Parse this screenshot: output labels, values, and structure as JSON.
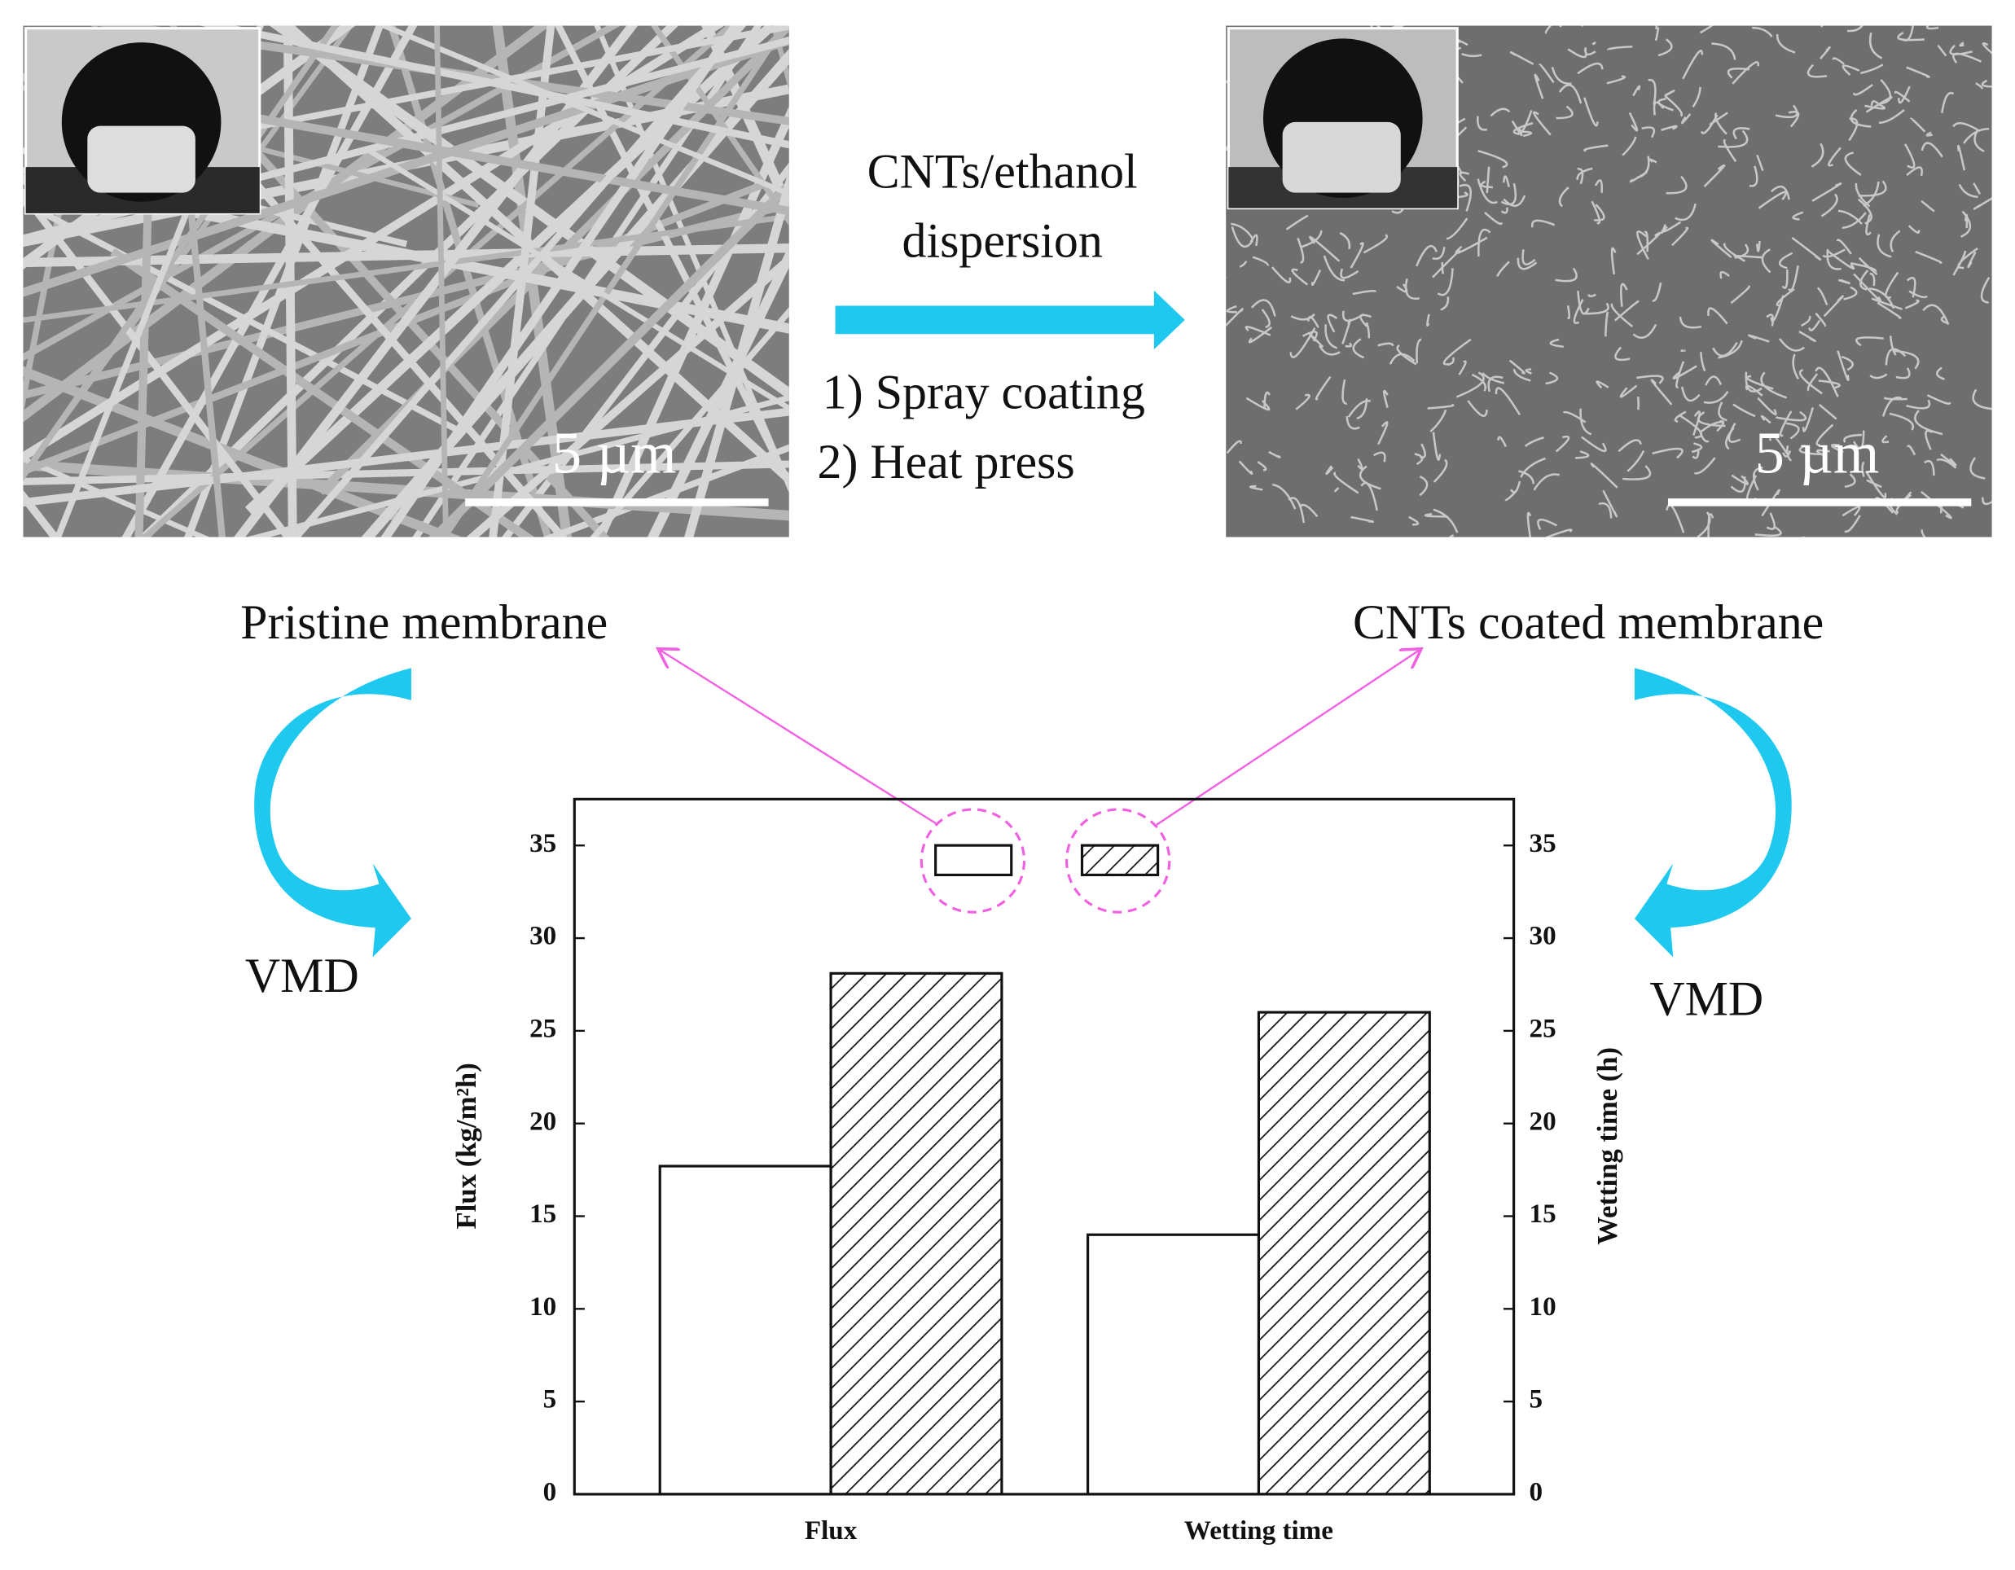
{
  "chart_data": {
    "type": "bar",
    "categories": [
      "Flux",
      "Wetting time"
    ],
    "y_label": "Flux (kg/m²h)",
    "y2_label": "Wetting time (h)",
    "series": [
      {
        "name": "Pristine membrane",
        "color": "#ffffff",
        "hatch": false,
        "values": [
          17.7,
          14
        ]
      },
      {
        "name": "CNTs coated membrane",
        "color": "#ffffff",
        "hatch": true,
        "values": [
          28.1,
          26
        ]
      }
    ],
    "ylim": [
      0,
      37.5
    ],
    "yticks": [
      0,
      5,
      10,
      15,
      20,
      25,
      30,
      35
    ],
    "y2lim": [
      0,
      37.5
    ],
    "y2ticks": [
      0,
      5,
      10,
      15,
      20,
      25,
      30,
      35
    ]
  },
  "figure": {
    "scale_bar_left": "5 µm",
    "scale_bar_right": "5 µm",
    "process_top": [
      "CNTs/ethanol",
      "dispersion"
    ],
    "process_bottom": [
      "1) Spray coating",
      "2) Heat press"
    ],
    "vmd_left": "VMD",
    "vmd_right": "VMD"
  }
}
